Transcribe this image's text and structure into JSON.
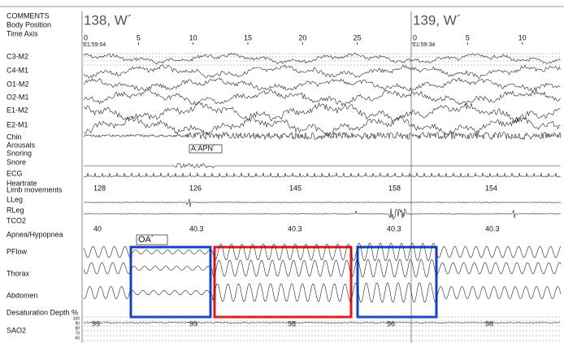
{
  "channels": [
    "COMMENTS",
    "Body Position",
    "Time Axis",
    "C3-M2",
    "C4-M1",
    "O1-M2",
    "O2-M1",
    "E1-M2",
    "E2-M1",
    "Chin",
    "Arousals",
    "Snoring",
    "Snore",
    "ECG",
    "Heartrate",
    "Limb movements",
    "LLeg",
    "RLeg",
    "TCO2",
    "Apnea/Hypopnea",
    "PFlow",
    "Thorax",
    "Abdomen",
    "Desaturation Depth %",
    "SAO2"
  ],
  "epochs": [
    {
      "label": "138, W´",
      "start": "21:59:04",
      "ticks": [
        0,
        5,
        10,
        15,
        20,
        25
      ]
    },
    {
      "label": "139, W´",
      "start": "21:59:34",
      "ticks": [
        0,
        5,
        10
      ]
    }
  ],
  "heartrate": [
    128,
    126,
    145,
    158,
    154
  ],
  "tco2": [
    40,
    40.3,
    40.3,
    40.3,
    40.3
  ],
  "sao2": [
    99,
    99,
    98,
    96,
    98
  ],
  "sao2_scale": [
    100,
    90,
    80,
    70,
    60
  ],
  "annotations": {
    "arousal": "A:APN´",
    "apnea": "OA´"
  }
}
